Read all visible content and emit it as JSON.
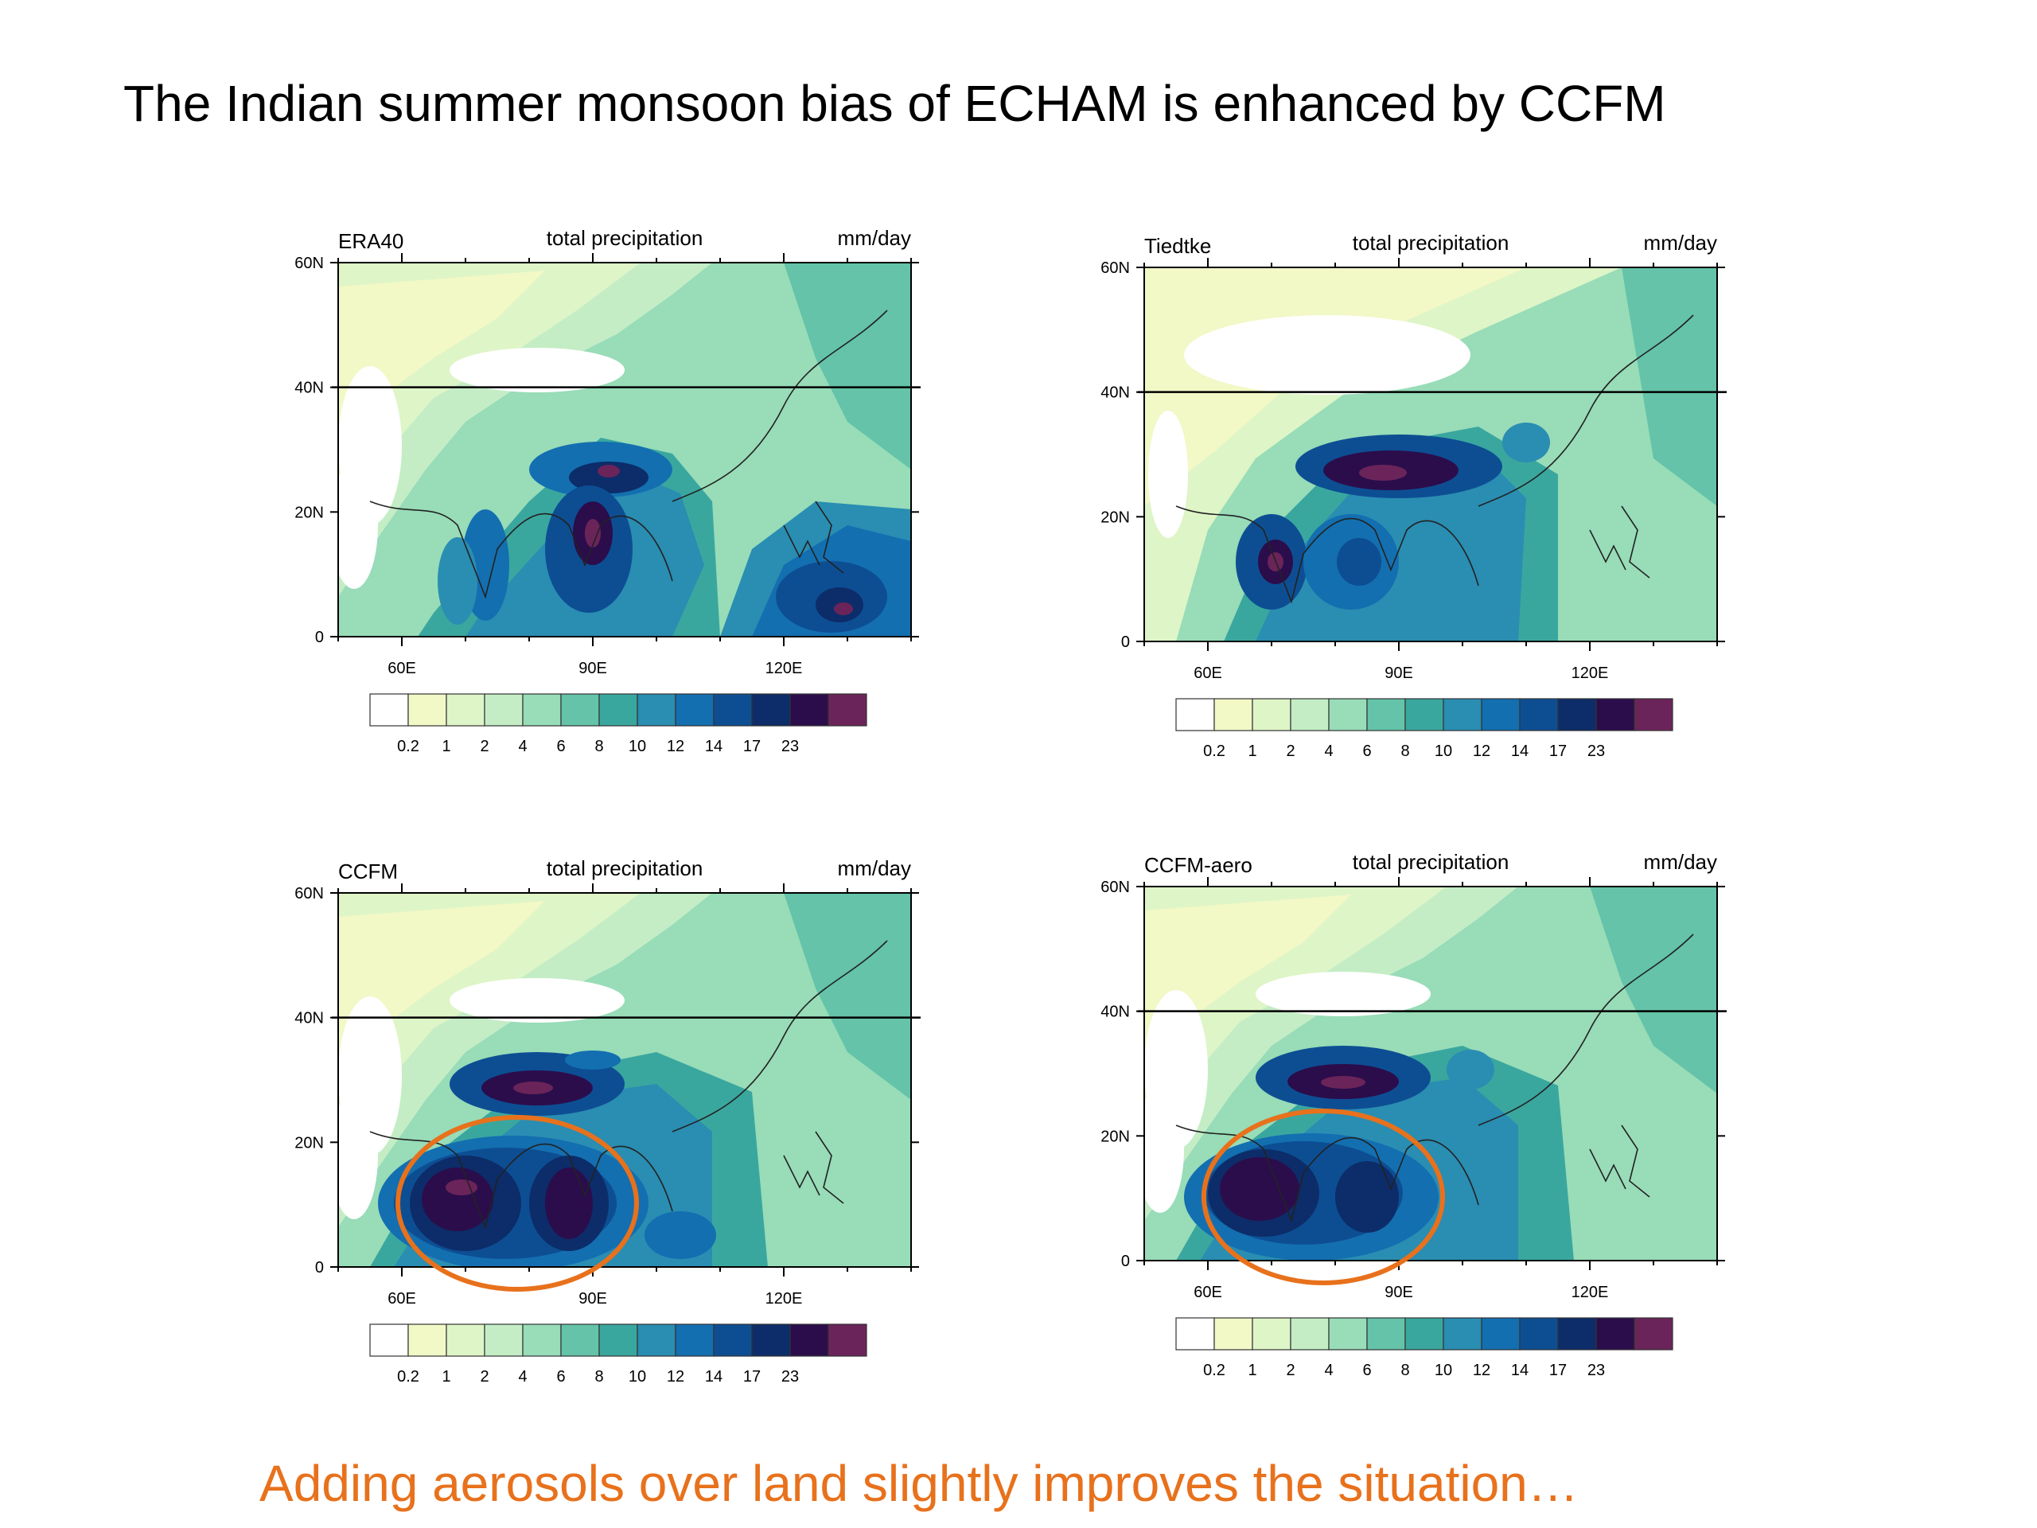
{
  "slide": {
    "title": "The Indian summer monsoon bias of ECHAM is enhanced by CCFM",
    "footer": "Adding aerosols over land slightly improves the situation…"
  },
  "colors": {
    "footer_text": "#e8711c",
    "circle_annotation": "#e8711c",
    "levels": [
      "#ffffff",
      "#f2f8c6",
      "#def5c7",
      "#c4edc6",
      "#98dcb8",
      "#64c3a8",
      "#3aa79f",
      "#2a8db2",
      "#136fb0",
      "#0d4e93",
      "#0c2d69",
      "#2b0d4c",
      "#6b2459"
    ]
  },
  "colorbar": {
    "labels": [
      "0.2",
      "1",
      "2",
      "4",
      "6",
      "8",
      "10",
      "12",
      "14",
      "17",
      "23"
    ]
  },
  "panels": [
    {
      "id": "era40",
      "left_title": "ERA40",
      "center_title": "total precipitation",
      "right_title": "mm/day",
      "lat_labels": [
        "60N",
        "40N",
        "20N",
        "0"
      ],
      "lon_labels": [
        "60E",
        "90E",
        "120E"
      ],
      "annotation_circle": false
    },
    {
      "id": "tiedtke",
      "left_title": "Tiedtke",
      "center_title": "total precipitation",
      "right_title": "mm/day",
      "lat_labels": [
        "60N",
        "40N",
        "20N",
        "0"
      ],
      "lon_labels": [
        "60E",
        "90E",
        "120E"
      ],
      "annotation_circle": false
    },
    {
      "id": "ccfm",
      "left_title": "CCFM",
      "center_title": "total precipitation",
      "right_title": "mm/day",
      "lat_labels": [
        "60N",
        "40N",
        "20N",
        "0"
      ],
      "lon_labels": [
        "60E",
        "90E",
        "120E"
      ],
      "annotation_circle": true
    },
    {
      "id": "ccfm-aero",
      "left_title": "CCFM-aero",
      "center_title": "total precipitation",
      "right_title": "mm/day",
      "lat_labels": [
        "60N",
        "40N",
        "20N",
        "0"
      ],
      "lon_labels": [
        "60E",
        "90E",
        "120E"
      ],
      "annotation_circle": true
    }
  ]
}
